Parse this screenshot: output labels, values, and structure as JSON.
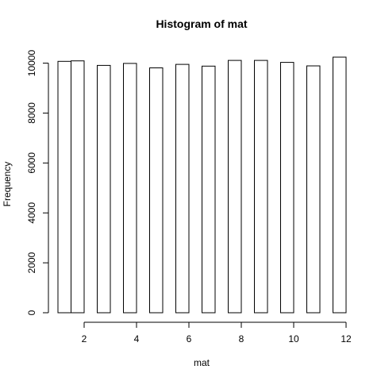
{
  "chart_data": {
    "type": "bar",
    "title": "Histogram of mat",
    "xlabel": "mat",
    "ylabel": "Frequency",
    "bins": [
      {
        "from": 1.0,
        "to": 1.5,
        "value": 10070
      },
      {
        "from": 1.5,
        "to": 2.0,
        "value": 10090
      },
      {
        "from": 2.5,
        "to": 3.0,
        "value": 9910
      },
      {
        "from": 3.5,
        "to": 4.0,
        "value": 9990
      },
      {
        "from": 4.5,
        "to": 5.0,
        "value": 9810
      },
      {
        "from": 5.5,
        "to": 6.0,
        "value": 9950
      },
      {
        "from": 6.5,
        "to": 7.0,
        "value": 9880
      },
      {
        "from": 7.5,
        "to": 8.0,
        "value": 10110
      },
      {
        "from": 8.5,
        "to": 9.0,
        "value": 10110
      },
      {
        "from": 9.5,
        "to": 10.0,
        "value": 10030
      },
      {
        "from": 10.5,
        "to": 11.0,
        "value": 9890
      },
      {
        "from": 11.5,
        "to": 12.0,
        "value": 10240
      }
    ],
    "xlim": [
      1,
      12
    ],
    "ylim": [
      0,
      10240
    ],
    "x_ticks": [
      2,
      4,
      6,
      8,
      10,
      12
    ],
    "y_ticks": [
      0,
      2000,
      4000,
      6000,
      8000,
      10000
    ],
    "grid": false,
    "legend": "none"
  }
}
